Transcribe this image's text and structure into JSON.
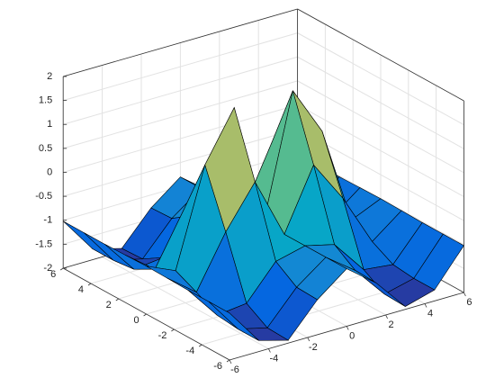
{
  "chart_data": {
    "type": "surface",
    "x": [
      -6,
      -4.5,
      -3,
      -1.5,
      0,
      1.5,
      3,
      4.5,
      6
    ],
    "y": [
      -6,
      -4.5,
      -3,
      -1.5,
      0,
      1.5,
      3,
      4.5,
      6
    ],
    "z": [
      [
        -1.02,
        -1.77,
        -1.94,
        -1.27,
        -0.8,
        -1.27,
        -1.94,
        -1.77,
        -1.02
      ],
      [
        -1.02,
        -1.77,
        -1.92,
        -1.25,
        -0.8,
        -1.25,
        -1.92,
        -1.77,
        -1.02
      ],
      [
        -1.02,
        -1.72,
        -1.65,
        -0.95,
        -0.8,
        -0.95,
        -1.65,
        -1.72,
        -1.02
      ],
      [
        -1.01,
        -1.48,
        -0.4,
        0.47,
        -0.8,
        0.47,
        -0.4,
        -1.48,
        -1.01
      ],
      [
        -1.0,
        -1.27,
        0.76,
        1.78,
        -0.8,
        1.78,
        0.76,
        -1.27,
        -1.0
      ],
      [
        -1.01,
        -1.48,
        -0.4,
        0.47,
        -0.8,
        0.47,
        -0.4,
        -1.48,
        -1.01
      ],
      [
        -1.02,
        -1.72,
        -1.65,
        -0.95,
        -0.8,
        -0.95,
        -1.65,
        -1.72,
        -1.02
      ],
      [
        -1.02,
        -1.77,
        -1.92,
        -1.25,
        -0.8,
        -1.25,
        -1.92,
        -1.77,
        -1.02
      ],
      [
        -1.02,
        -1.77,
        -1.94,
        -1.27,
        -0.8,
        -1.27,
        -1.94,
        -1.77,
        -1.02
      ]
    ],
    "xlim": [
      -6,
      6
    ],
    "ylim": [
      -6,
      6
    ],
    "zlim": [
      -2,
      2
    ],
    "xticks": [
      -6,
      -4,
      -2,
      0,
      2,
      4,
      6
    ],
    "yticks": [
      -6,
      -4,
      -2,
      0,
      2,
      4,
      6
    ],
    "zticks": [
      -2,
      -1.5,
      -1,
      -0.5,
      0,
      0.5,
      1,
      1.5,
      2
    ],
    "colormap": [
      "#352a87",
      "#0363e1",
      "#1485d4",
      "#06a7c6",
      "#38b99e",
      "#92bf73",
      "#d9ba56",
      "#fcce2e",
      "#f9fb0e"
    ],
    "grid": true
  }
}
